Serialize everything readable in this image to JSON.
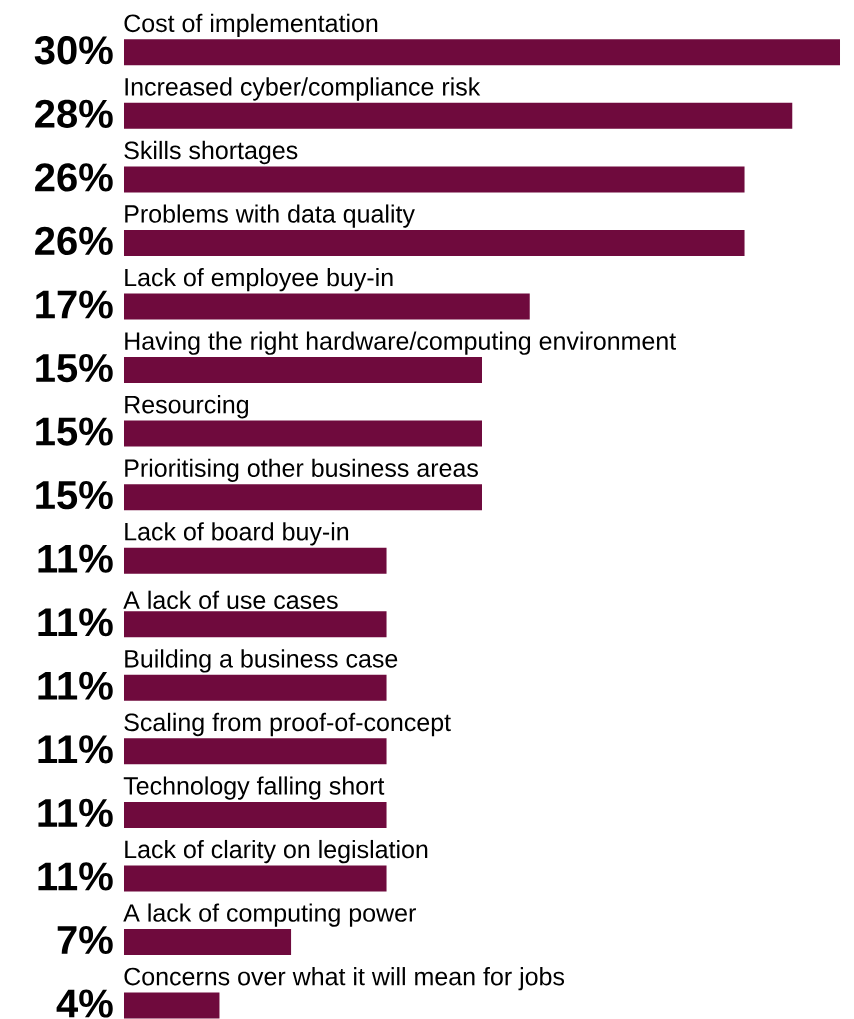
{
  "chart_data": {
    "type": "bar",
    "orientation": "horizontal",
    "color": "#6f0a3d",
    "categories": [
      "Cost of implementation",
      "Increased cyber/compliance risk",
      "Skills shortages",
      "Problems with data quality",
      "Lack of employee buy-in",
      "Having the right hardware/computing environment",
      "Resourcing",
      "Prioritising other business areas",
      "Lack of board buy-in",
      "A lack of use cases",
      "Building a business case",
      "Scaling from proof-of-concept",
      "Technology falling short",
      "Lack of clarity on legislation",
      "A lack of computing power",
      "Concerns over what it will mean for jobs"
    ],
    "values": [
      30,
      28,
      26,
      26,
      17,
      15,
      15,
      15,
      11,
      11,
      11,
      11,
      11,
      11,
      7,
      4
    ],
    "value_labels": [
      "30%",
      "28%",
      "26%",
      "26%",
      "17%",
      "15%",
      "15%",
      "15%",
      "11%",
      "11%",
      "11%",
      "11%",
      "11%",
      "11%",
      "7%",
      "4%"
    ]
  }
}
